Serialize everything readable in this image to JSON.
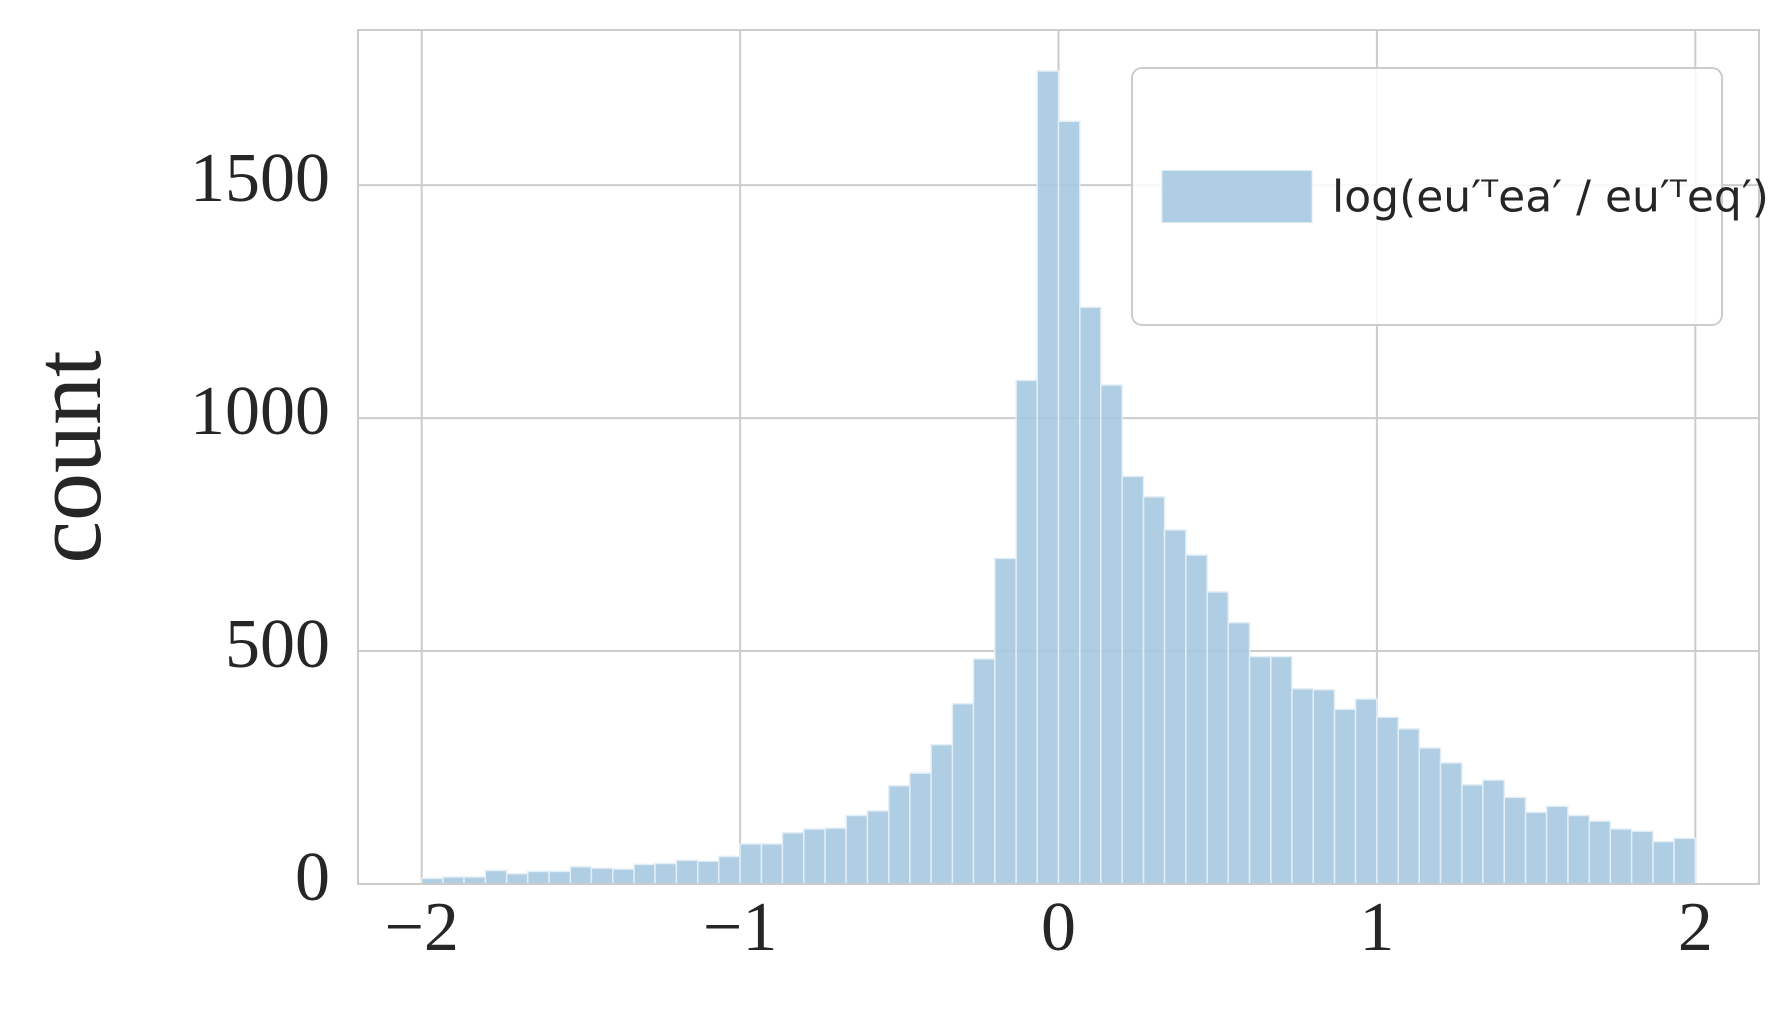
{
  "chart_data": {
    "type": "histogram",
    "ylabel": "count",
    "bins": [
      -2.0,
      -1.933,
      -1.867,
      -1.8,
      -1.733,
      -1.667,
      -1.6,
      -1.533,
      -1.467,
      -1.4,
      -1.333,
      -1.267,
      -1.2,
      -1.133,
      -1.067,
      -1.0,
      -0.933,
      -0.867,
      -0.8,
      -0.733,
      -0.667,
      -0.6,
      -0.533,
      -0.467,
      -0.4,
      -0.333,
      -0.267,
      -0.2,
      -0.133,
      -0.067,
      0.0,
      0.067,
      0.133,
      0.2,
      0.267,
      0.333,
      0.4,
      0.467,
      0.533,
      0.6,
      0.667,
      0.733,
      0.8,
      0.867,
      0.933,
      1.0,
      1.067,
      1.133,
      1.2,
      1.267,
      1.333,
      1.4,
      1.467,
      1.533,
      1.6,
      1.667,
      1.733,
      1.8,
      1.867,
      1.933,
      2.0
    ],
    "series": [
      {
        "name": "log(eu′ᵀea′ / eu′ᵀeq′)",
        "color": "#a6c8e0",
        "values": [
          12,
          15,
          15,
          29,
          22,
          27,
          27,
          37,
          34,
          32,
          42,
          44,
          51,
          49,
          59,
          86,
          86,
          110,
          118,
          120,
          147,
          157,
          211,
          238,
          299,
          387,
          483,
          699,
          1081,
          1745,
          1637,
          1238,
          1071,
          875,
          831,
          760,
          706,
          627,
          561,
          488,
          488,
          419,
          417,
          375,
          397,
          358,
          333,
          292,
          260,
          213,
          223,
          186,
          154,
          167,
          147,
          135,
          118,
          113,
          91,
          98
        ]
      }
    ],
    "xlim": [
      -2.2,
      2.2
    ],
    "ylim": [
      0,
      1833
    ],
    "xticks": [
      -2,
      -1,
      0,
      1,
      2
    ],
    "yticks": [
      0,
      500,
      1000,
      1500
    ],
    "grid": true,
    "legend": "upper right"
  }
}
